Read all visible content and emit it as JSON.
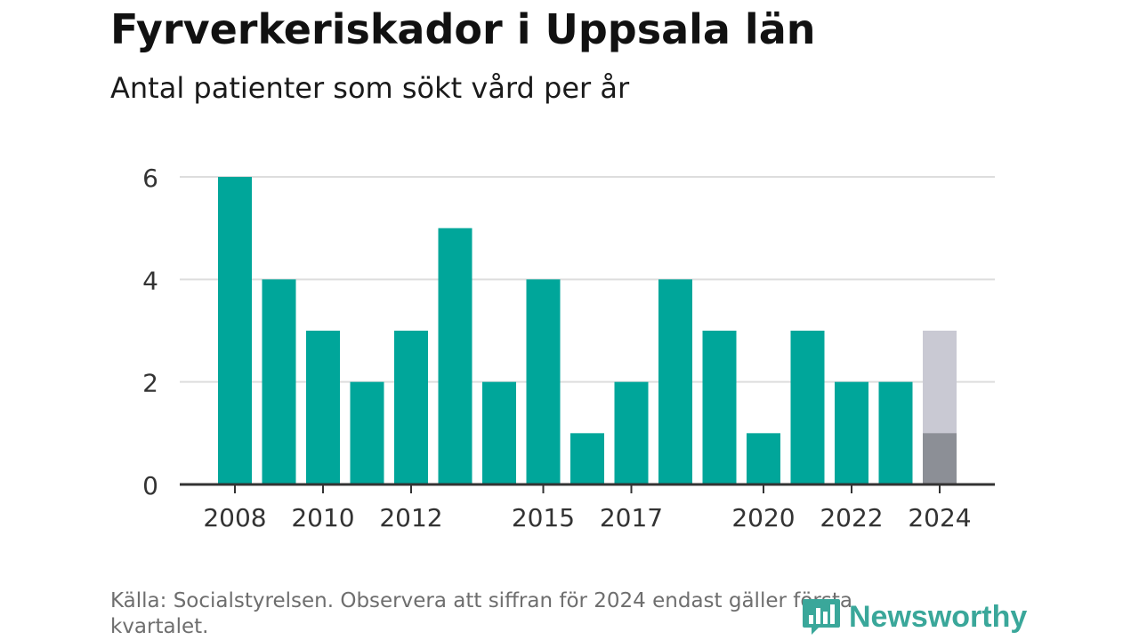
{
  "title": "Fyrverkeriskador i Uppsala län",
  "subtitle": "Antal patienter som sökt vård per år",
  "footer": "Källa: Socialstyrelsen. Observera att siffran för 2024 endast gäller första kvartalet.",
  "logo": {
    "text": "Newsworthy",
    "icon": "bar-chart-logo-icon",
    "color": "#3aa79a"
  },
  "colors": {
    "bar": "#00a69a",
    "partial_actual": "#8c8f96",
    "partial_estimate": "#c9c9d3",
    "grid": "#dddddd",
    "axis": "#333333"
  },
  "chart_data": {
    "type": "bar",
    "categories": [
      "2008",
      "2009",
      "2010",
      "2011",
      "2012",
      "2013",
      "2014",
      "2015",
      "2016",
      "2017",
      "2018",
      "2019",
      "2020",
      "2021",
      "2022",
      "2023",
      "2024"
    ],
    "values": [
      6,
      4,
      3,
      2,
      3,
      5,
      2,
      4,
      1,
      2,
      4,
      3,
      1,
      3,
      2,
      2,
      1
    ],
    "partial_estimate": {
      "category": "2024",
      "value": 3
    },
    "x_tick_labels": [
      "2008",
      "2010",
      "2012",
      "2015",
      "2017",
      "2020",
      "2022",
      "2024"
    ],
    "y_ticks": [
      0,
      2,
      4,
      6
    ],
    "ylim": [
      0,
      6
    ],
    "grid": true,
    "xlabel": "",
    "ylabel": ""
  }
}
